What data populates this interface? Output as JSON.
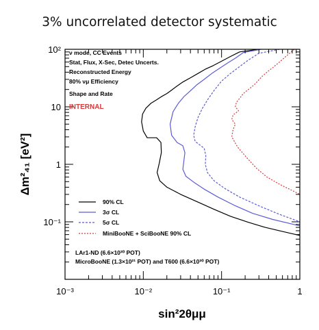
{
  "slide_title": "3% uncorrelated detector systematic",
  "chart_data": {
    "type": "line",
    "x_scale": "log",
    "y_scale": "log",
    "xlim": [
      0.001,
      1
    ],
    "ylim": [
      0.01,
      100
    ],
    "x_ticks": [
      {
        "value": 0.001,
        "label": "10⁻³"
      },
      {
        "value": 0.01,
        "label": "10⁻²"
      },
      {
        "value": 0.1,
        "label": "10⁻¹"
      },
      {
        "value": 1,
        "label": "1"
      }
    ],
    "y_ticks": [
      {
        "value": 0.1,
        "label": "10⁻¹"
      },
      {
        "value": 1,
        "label": "1"
      },
      {
        "value": 10,
        "label": "10"
      },
      {
        "value": 100,
        "label": "10²"
      }
    ],
    "xlabel": "sin²2θμμ",
    "ylabel": "Δm²₄₁ [eV²]",
    "grid": false,
    "legend_placement": "lower-left",
    "annotations": [
      "ν mode, CC Events",
      "Stat, Flux, X-Sec, Detec Uncerts.",
      "Reconstructed Energy",
      "80% νμ Efficiency",
      "Shape and Rate"
    ],
    "internal_label": "INTERNAL",
    "footnotes": [
      "LAr1-ND (6.6×10²⁰ POT)",
      "MicroBooNE (1.3×10²¹ POT) and T600 (6.6×10²⁰ POT)"
    ],
    "series": [
      {
        "name": "90% CL",
        "color": "#000000",
        "style": "solid",
        "x": [
          0.3,
          0.17,
          0.13,
          0.1,
          0.078,
          0.062,
          0.05,
          0.04,
          0.032,
          0.027,
          0.023,
          0.02,
          0.017,
          0.0145,
          0.0125,
          0.0108,
          0.0098,
          0.0095,
          0.01,
          0.0112,
          0.0128,
          0.0148,
          0.0168,
          0.017,
          0.016,
          0.015,
          0.0162,
          0.02,
          0.03,
          0.05,
          0.08,
          0.13,
          0.22,
          0.36,
          0.6,
          1.0
        ],
        "y": [
          100,
          90,
          75,
          62,
          52,
          45,
          38,
          32,
          27,
          23,
          19.5,
          17,
          15,
          13,
          11.5,
          9.5,
          7.5,
          5.5,
          3.8,
          2.9,
          2.9,
          2.9,
          2.4,
          1.6,
          1.05,
          0.72,
          0.52,
          0.4,
          0.3,
          0.22,
          0.165,
          0.125,
          0.098,
          0.08,
          0.068,
          0.058
        ]
      },
      {
        "name": "3σ CL",
        "color": "#5b5bd8",
        "style": "solid",
        "x": [
          0.32,
          0.19,
          0.15,
          0.12,
          0.095,
          0.075,
          0.06,
          0.048,
          0.04,
          0.033,
          0.028,
          0.024,
          0.022,
          0.023,
          0.027,
          0.032,
          0.034,
          0.033,
          0.032,
          0.035,
          0.045,
          0.06,
          0.09,
          0.15,
          0.25,
          0.45,
          1.0
        ],
        "y": [
          100,
          88,
          70,
          58,
          47,
          38,
          30,
          24,
          19,
          15,
          11.5,
          8.2,
          5.0,
          3.2,
          2.4,
          2.1,
          1.6,
          1.15,
          0.82,
          0.62,
          0.48,
          0.37,
          0.27,
          0.19,
          0.14,
          0.11,
          0.085
        ]
      },
      {
        "name": "5σ CL",
        "color": "#5b5bd8",
        "style": "dashed",
        "x": [
          0.55,
          0.3,
          0.22,
          0.17,
          0.13,
          0.1,
          0.082,
          0.068,
          0.057,
          0.05,
          0.046,
          0.044,
          0.046,
          0.052,
          0.06,
          0.063,
          0.062,
          0.066,
          0.08,
          0.11,
          0.17,
          0.3,
          0.55,
          1.0
        ],
        "y": [
          100,
          85,
          65,
          50,
          38,
          28,
          20,
          14,
          9.5,
          6.5,
          4.5,
          3.2,
          2.5,
          2.2,
          1.9,
          1.4,
          1.0,
          0.72,
          0.52,
          0.38,
          0.27,
          0.19,
          0.135,
          0.1
        ]
      },
      {
        "name": "MiniBooNE + SciBooNE 90% CL",
        "color": "#d43a3a",
        "style": "dotted",
        "x": [
          0.85,
          0.7,
          0.55,
          0.45,
          0.38,
          0.33,
          0.29,
          0.26,
          0.22,
          0.19,
          0.17,
          0.155,
          0.15,
          0.165,
          0.14,
          0.135,
          0.15,
          0.14,
          0.135,
          0.16,
          0.21,
          0.28,
          0.38,
          0.55,
          0.8,
          1.0
        ],
        "y": [
          100,
          80,
          60,
          48,
          40,
          34,
          28,
          24,
          20,
          17,
          14,
          12,
          10,
          8.5,
          7.2,
          6.0,
          5.0,
          4.0,
          3.0,
          2.0,
          1.3,
          0.85,
          0.6,
          0.45,
          0.35,
          0.3
        ]
      }
    ]
  }
}
